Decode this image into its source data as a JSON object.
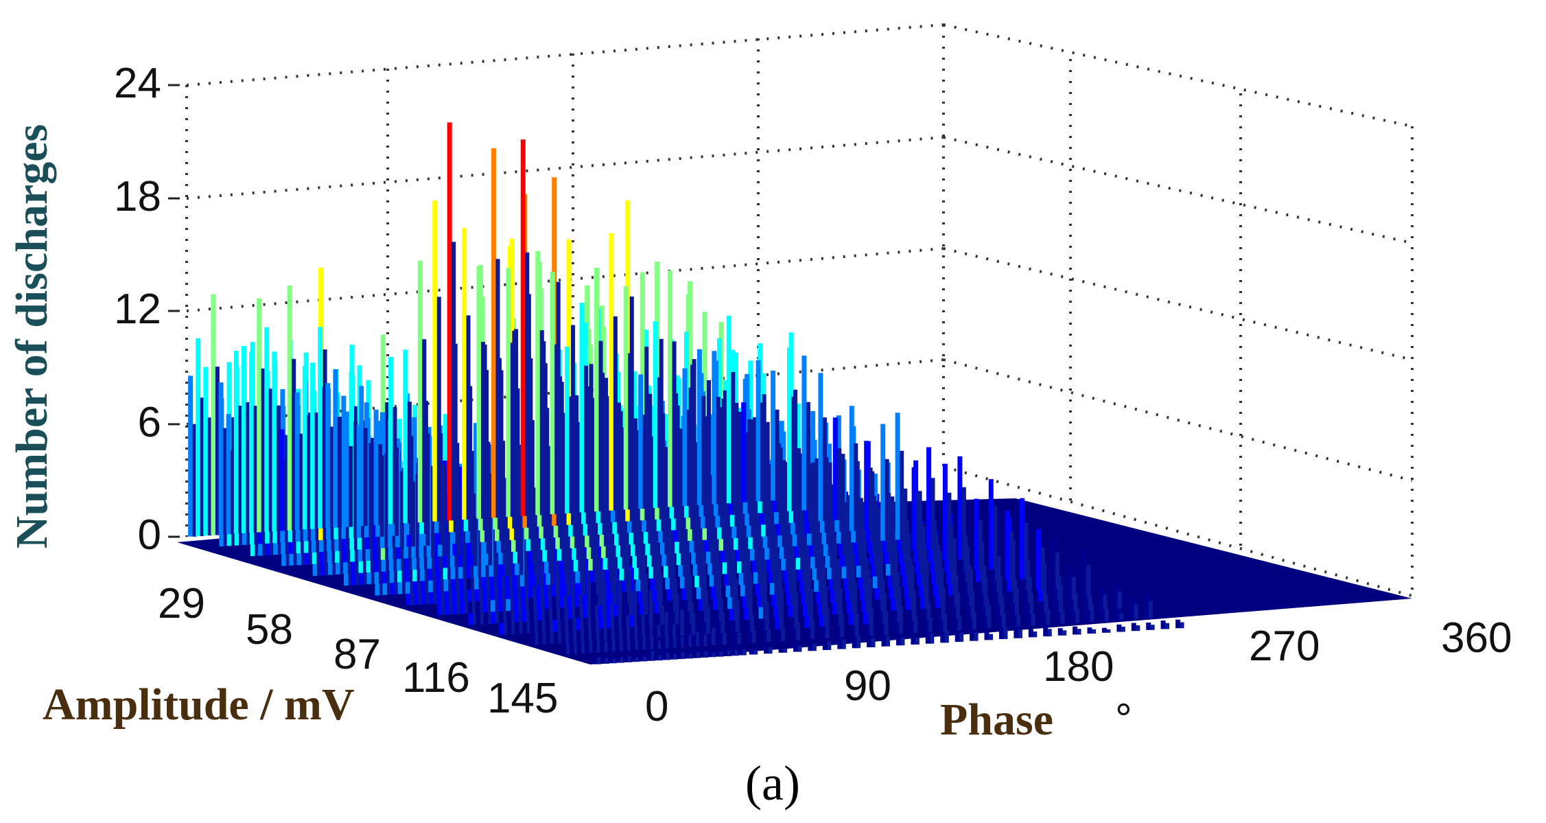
{
  "caption": "(a)",
  "chart_data": {
    "type": "bar3d",
    "title": "",
    "xlabel": "Phase",
    "xlabel_unit": "°",
    "ylabel": "Amplitude / mV",
    "zlabel": "Number of discharges",
    "x_ticks": [
      "0",
      "90",
      "180",
      "270",
      "360"
    ],
    "y_ticks": [
      "29",
      "58",
      "87",
      "116",
      "145"
    ],
    "z_ticks": [
      "0",
      "6",
      "12",
      "18",
      "24"
    ],
    "xlim": [
      0,
      360
    ],
    "ylim": [
      0,
      145
    ],
    "zlim": [
      0,
      24
    ],
    "grid": true,
    "colormap": "jet",
    "clusters": [
      {
        "phase_range": [
          0,
          45
        ],
        "amplitude_range": [
          0,
          150
        ],
        "peak_counts": [
          14,
          12,
          11,
          13,
          12,
          9,
          14,
          16,
          10,
          15,
          12,
          11,
          8,
          16,
          12,
          10,
          9,
          13,
          11,
          12
        ]
      },
      {
        "phase_range": [
          45,
          175
        ],
        "amplitude_range": [
          0,
          150
        ],
        "peak_counts": [
          9,
          12,
          10,
          13,
          11,
          16,
          19,
          24,
          18,
          22,
          21,
          17,
          22,
          19,
          16,
          14,
          12,
          19,
          17,
          15,
          12,
          11,
          13,
          10,
          9,
          11,
          12,
          8,
          10,
          11
        ]
      },
      {
        "phase_range": [
          175,
          360
        ],
        "amplitude_range": [
          0,
          150
        ],
        "peak_counts": [
          0,
          0,
          0,
          0,
          0
        ]
      }
    ]
  },
  "colors": {
    "base": "#000080",
    "jet": [
      "#00008f",
      "#0000ff",
      "#0080ff",
      "#00ffff",
      "#80ff80",
      "#ffff00",
      "#ff8000",
      "#ff0000"
    ]
  }
}
